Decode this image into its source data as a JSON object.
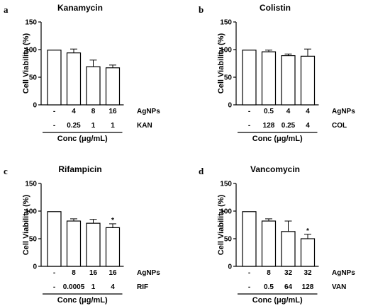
{
  "chart_data": [
    {
      "type": "bar",
      "panel": "a",
      "title": "Kanamycin",
      "ylabel": "Cell Viability (%)",
      "xlabel": "Conc (μg/mL)",
      "ylim": [
        0,
        150
      ],
      "yticks": [
        0,
        50,
        100,
        150
      ],
      "rows": [
        {
          "label": "AgNPs",
          "values": [
            "-",
            "4",
            "8",
            "16"
          ]
        },
        {
          "label": "KAN",
          "values": [
            "-",
            "0.25",
            "1",
            "1"
          ]
        }
      ],
      "values": [
        99,
        94,
        69,
        67
      ],
      "errors": [
        0,
        7,
        12,
        5
      ],
      "significance": [
        "",
        "",
        "",
        ""
      ]
    },
    {
      "type": "bar",
      "panel": "b",
      "title": "Colistin",
      "ylabel": "Cell Viability (%)",
      "xlabel": "Conc (μg/mL)",
      "ylim": [
        0,
        150
      ],
      "yticks": [
        0,
        50,
        100,
        150
      ],
      "rows": [
        {
          "label": "AgNPs",
          "values": [
            "-",
            "0.5",
            "4",
            "4"
          ]
        },
        {
          "label": "COL",
          "values": [
            "-",
            "128",
            "0.25",
            "4"
          ]
        }
      ],
      "values": [
        99,
        96,
        89,
        88
      ],
      "errors": [
        0,
        3,
        3,
        13
      ],
      "significance": [
        "",
        "",
        "",
        ""
      ]
    },
    {
      "type": "bar",
      "panel": "c",
      "title": "Rifampicin",
      "ylabel": "Cell Viability (%)",
      "xlabel": "Conc (μg/mL)",
      "ylim": [
        0,
        150
      ],
      "yticks": [
        0,
        50,
        100,
        150
      ],
      "rows": [
        {
          "label": "AgNPs",
          "values": [
            "-",
            "8",
            "16",
            "16"
          ]
        },
        {
          "label": "RIF",
          "values": [
            "-",
            "0.0005",
            "1",
            "4"
          ]
        }
      ],
      "values": [
        99,
        82,
        78,
        70
      ],
      "errors": [
        0,
        4,
        7,
        7
      ],
      "significance": [
        "",
        "",
        "",
        "*"
      ]
    },
    {
      "type": "bar",
      "panel": "d",
      "title": "Vancomycin",
      "ylabel": "Cell Viability (%)",
      "xlabel": "Conc (μg/mL)",
      "ylim": [
        0,
        150
      ],
      "yticks": [
        0,
        50,
        100,
        150
      ],
      "rows": [
        {
          "label": "AgNPs",
          "values": [
            "-",
            "8",
            "32",
            "32"
          ]
        },
        {
          "label": "VAN",
          "values": [
            "-",
            "0.5",
            "64",
            "128"
          ]
        }
      ],
      "values": [
        99,
        82,
        63,
        50
      ],
      "errors": [
        0,
        4,
        19,
        8
      ],
      "significance": [
        "",
        "",
        "",
        "*"
      ]
    }
  ]
}
